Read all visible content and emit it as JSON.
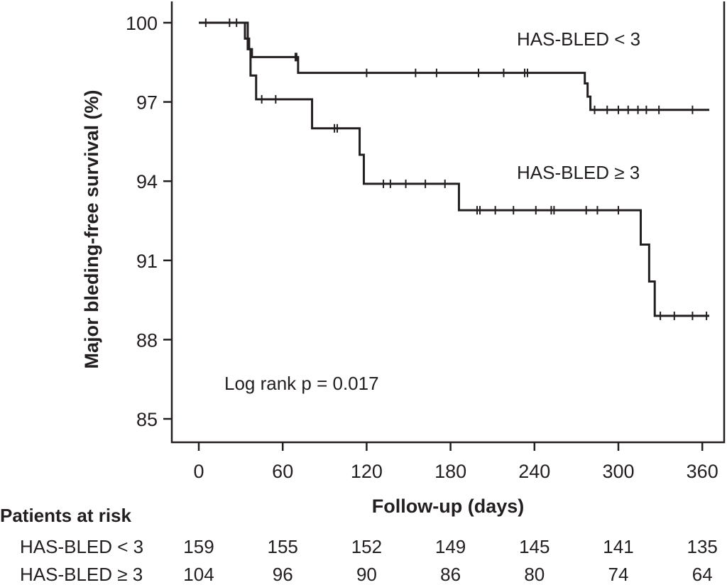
{
  "chart_data": {
    "type": "line",
    "step": true,
    "xlabel": "Follow-up (days)",
    "ylabel": "Major bleding-free survival (%)",
    "xlim": [
      -20,
      375
    ],
    "ylim": [
      84,
      100.7
    ],
    "xticks": [
      0,
      60,
      120,
      180,
      240,
      300,
      360
    ],
    "yticks": [
      85,
      88,
      91,
      94,
      97,
      100
    ],
    "series": [
      {
        "name": "HAS-BLED < 3",
        "steps": [
          [
            0,
            100
          ],
          [
            33,
            99.4
          ],
          [
            36,
            99.0
          ],
          [
            38,
            98.7
          ],
          [
            71,
            98.1
          ],
          [
            276,
            97.7
          ],
          [
            278,
            97.2
          ],
          [
            280,
            96.7
          ],
          [
            365,
            96.7
          ]
        ],
        "censored": [
          [
            5,
            100
          ],
          [
            22,
            100
          ],
          [
            27,
            100
          ],
          [
            69,
            98.7
          ],
          [
            70,
            98.7
          ],
          [
            120,
            98.1
          ],
          [
            155,
            98.1
          ],
          [
            170,
            98.1
          ],
          [
            200,
            98.1
          ],
          [
            218,
            98.1
          ],
          [
            233,
            98.1
          ],
          [
            235,
            98.1
          ],
          [
            283,
            96.7
          ],
          [
            292,
            96.7
          ],
          [
            300,
            96.7
          ],
          [
            307,
            96.7
          ],
          [
            314,
            96.7
          ],
          [
            320,
            96.7
          ],
          [
            329,
            96.7
          ],
          [
            353,
            96.7
          ]
        ]
      },
      {
        "name": "HAS-BLED ≥ 3",
        "steps": [
          [
            0,
            100
          ],
          [
            35,
            99.0
          ],
          [
            37,
            98.0
          ],
          [
            41,
            97.1
          ],
          [
            81,
            96.0
          ],
          [
            115,
            95.0
          ],
          [
            118,
            93.9
          ],
          [
            186,
            92.9
          ],
          [
            316,
            91.6
          ],
          [
            322,
            90.2
          ],
          [
            326,
            88.9
          ],
          [
            365,
            88.9
          ]
        ],
        "censored": [
          [
            45,
            97.1
          ],
          [
            55,
            97.1
          ],
          [
            97,
            96.0
          ],
          [
            99,
            96.0
          ],
          [
            132,
            93.9
          ],
          [
            137,
            93.9
          ],
          [
            148,
            93.9
          ],
          [
            162,
            93.9
          ],
          [
            176,
            93.9
          ],
          [
            199,
            92.9
          ],
          [
            201,
            92.9
          ],
          [
            212,
            92.9
          ],
          [
            225,
            92.9
          ],
          [
            241,
            92.9
          ],
          [
            252,
            92.9
          ],
          [
            254,
            92.9
          ],
          [
            277,
            92.9
          ],
          [
            285,
            92.9
          ],
          [
            300,
            92.9
          ],
          [
            330,
            88.9
          ],
          [
            340,
            88.9
          ],
          [
            353,
            88.9
          ],
          [
            363,
            88.9
          ]
        ]
      }
    ],
    "annotations": {
      "label_low": "HAS-BLED < 3",
      "label_high": "HAS-BLED ≥ 3",
      "pvalue": "Log rank p = 0.017"
    },
    "risk_table": {
      "title": "Patients at risk",
      "rows": [
        {
          "label": "HAS-BLED < 3",
          "values": [
            "159",
            "155",
            "152",
            "149",
            "145",
            "141",
            "135"
          ]
        },
        {
          "label": "HAS-BLED ≥ 3",
          "values": [
            "104",
            "96",
            "90",
            "86",
            "80",
            "74",
            "64"
          ]
        }
      ]
    }
  }
}
